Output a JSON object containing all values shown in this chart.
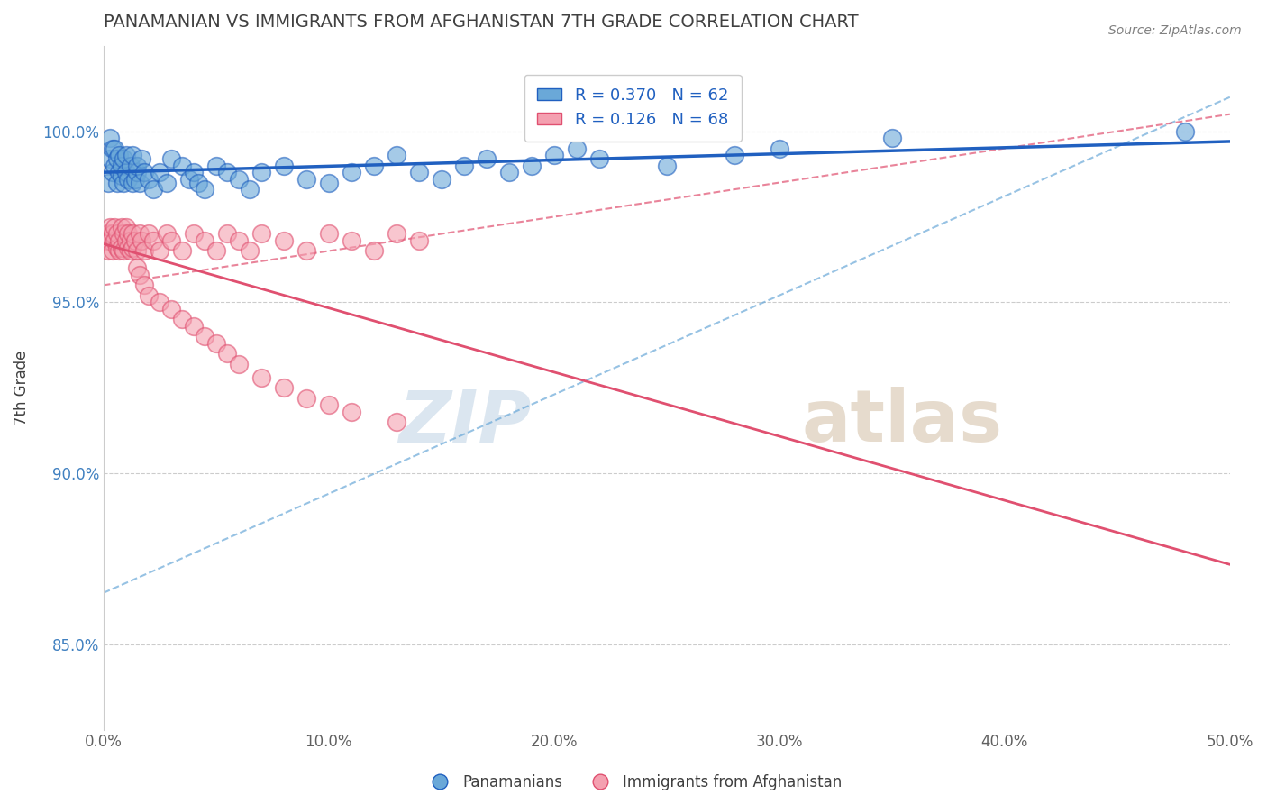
{
  "title": "PANAMANIAN VS IMMIGRANTS FROM AFGHANISTAN 7TH GRADE CORRELATION CHART",
  "source": "Source: ZipAtlas.com",
  "xlabel": "",
  "ylabel": "7th Grade",
  "xlim": [
    0.0,
    0.5
  ],
  "ylim": [
    0.825,
    1.025
  ],
  "x_ticks": [
    0.0,
    0.1,
    0.2,
    0.3,
    0.4,
    0.5
  ],
  "x_tick_labels": [
    "0.0%",
    "10.0%",
    "20.0%",
    "30.0%",
    "40.0%",
    "50.0%"
  ],
  "y_ticks": [
    0.85,
    0.9,
    0.95,
    1.0
  ],
  "y_tick_labels": [
    "85.0%",
    "90.0%",
    "95.0%",
    "100.0%"
  ],
  "watermark_zip": "ZIP",
  "watermark_atlas": "atlas",
  "blue_R": 0.37,
  "blue_N": 62,
  "pink_R": 0.126,
  "pink_N": 68,
  "blue_color": "#6aa8d8",
  "pink_color": "#f4a0b0",
  "blue_line_color": "#2060c0",
  "pink_line_color": "#e05070",
  "blue_scatter_x": [
    0.002,
    0.003,
    0.003,
    0.004,
    0.004,
    0.005,
    0.005,
    0.006,
    0.006,
    0.007,
    0.007,
    0.008,
    0.008,
    0.009,
    0.009,
    0.01,
    0.01,
    0.011,
    0.012,
    0.013,
    0.013,
    0.014,
    0.015,
    0.015,
    0.016,
    0.017,
    0.018,
    0.02,
    0.022,
    0.025,
    0.028,
    0.03,
    0.035,
    0.038,
    0.04,
    0.042,
    0.045,
    0.05,
    0.055,
    0.06,
    0.065,
    0.07,
    0.08,
    0.09,
    0.1,
    0.11,
    0.12,
    0.13,
    0.14,
    0.15,
    0.16,
    0.17,
    0.18,
    0.19,
    0.2,
    0.21,
    0.22,
    0.25,
    0.28,
    0.3,
    0.35,
    0.48
  ],
  "blue_scatter_y": [
    0.985,
    0.992,
    0.998,
    0.995,
    0.988,
    0.99,
    0.995,
    0.985,
    0.992,
    0.988,
    0.993,
    0.987,
    0.99,
    0.992,
    0.985,
    0.988,
    0.993,
    0.986,
    0.99,
    0.985,
    0.993,
    0.986,
    0.988,
    0.99,
    0.985,
    0.992,
    0.988,
    0.986,
    0.983,
    0.988,
    0.985,
    0.992,
    0.99,
    0.986,
    0.988,
    0.985,
    0.983,
    0.99,
    0.988,
    0.986,
    0.983,
    0.988,
    0.99,
    0.986,
    0.985,
    0.988,
    0.99,
    0.993,
    0.988,
    0.986,
    0.99,
    0.992,
    0.988,
    0.99,
    0.993,
    0.995,
    0.992,
    0.99,
    0.993,
    0.995,
    0.998,
    1.0
  ],
  "pink_scatter_x": [
    0.001,
    0.002,
    0.002,
    0.003,
    0.003,
    0.004,
    0.004,
    0.005,
    0.005,
    0.006,
    0.006,
    0.007,
    0.007,
    0.008,
    0.008,
    0.009,
    0.009,
    0.01,
    0.01,
    0.011,
    0.011,
    0.012,
    0.012,
    0.013,
    0.013,
    0.014,
    0.015,
    0.016,
    0.017,
    0.018,
    0.02,
    0.022,
    0.025,
    0.028,
    0.03,
    0.035,
    0.04,
    0.045,
    0.05,
    0.055,
    0.06,
    0.065,
    0.07,
    0.08,
    0.09,
    0.1,
    0.11,
    0.12,
    0.13,
    0.14,
    0.015,
    0.016,
    0.018,
    0.02,
    0.025,
    0.03,
    0.035,
    0.04,
    0.045,
    0.05,
    0.055,
    0.06,
    0.07,
    0.08,
    0.09,
    0.1,
    0.11,
    0.13
  ],
  "pink_scatter_y": [
    0.968,
    0.965,
    0.97,
    0.968,
    0.972,
    0.965,
    0.97,
    0.968,
    0.972,
    0.966,
    0.97,
    0.965,
    0.968,
    0.972,
    0.966,
    0.97,
    0.965,
    0.968,
    0.972,
    0.966,
    0.97,
    0.965,
    0.968,
    0.966,
    0.97,
    0.968,
    0.965,
    0.97,
    0.968,
    0.965,
    0.97,
    0.968,
    0.965,
    0.97,
    0.968,
    0.965,
    0.97,
    0.968,
    0.965,
    0.97,
    0.968,
    0.965,
    0.97,
    0.968,
    0.965,
    0.97,
    0.968,
    0.965,
    0.97,
    0.968,
    0.96,
    0.958,
    0.955,
    0.952,
    0.95,
    0.948,
    0.945,
    0.943,
    0.94,
    0.938,
    0.935,
    0.932,
    0.928,
    0.925,
    0.922,
    0.92,
    0.918,
    0.915
  ],
  "background_color": "#ffffff",
  "grid_color": "#cccccc",
  "title_color": "#404040",
  "source_color": "#808080"
}
